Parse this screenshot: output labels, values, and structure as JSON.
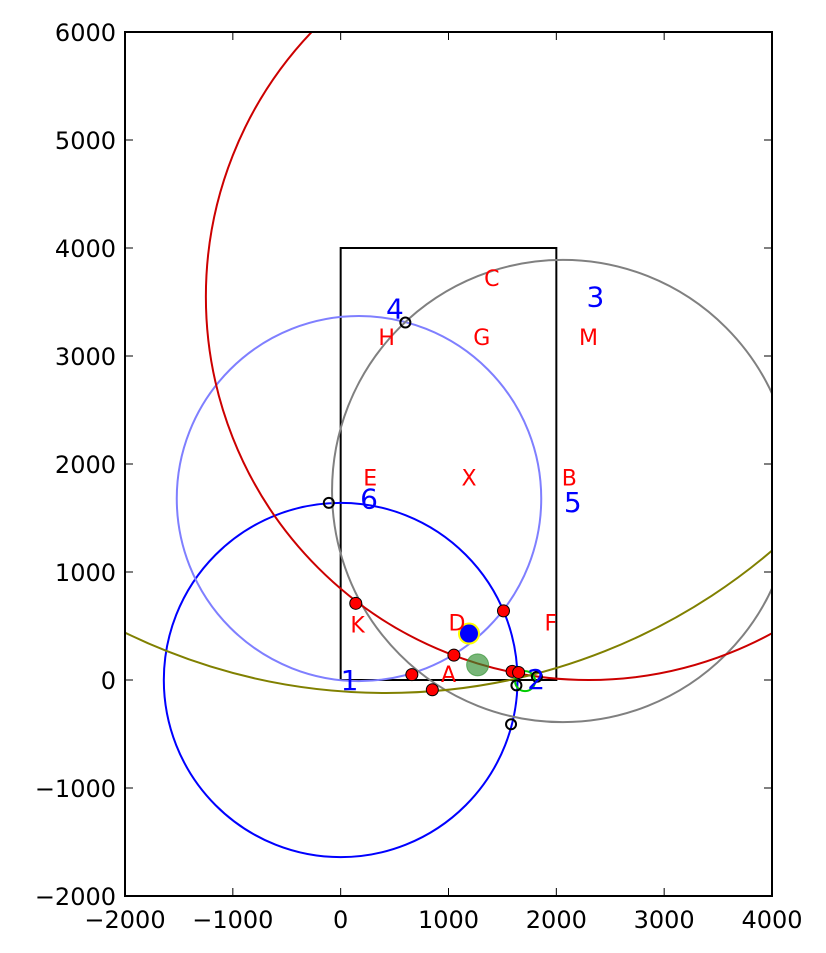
{
  "chart_data": {
    "type": "scatter",
    "title": "",
    "xlabel": "",
    "ylabel": "",
    "xlim": [
      -2000,
      4000
    ],
    "ylim": [
      -2000,
      6000
    ],
    "xticks": [
      -2000,
      -1000,
      0,
      1000,
      2000,
      3000,
      4000
    ],
    "yticks": [
      -2000,
      -1000,
      0,
      1000,
      2000,
      3000,
      4000,
      5000,
      6000
    ],
    "tick_labels_x": [
      "−2000",
      "−1000",
      "0",
      "1000",
      "2000",
      "3000",
      "4000"
    ],
    "tick_labels_y": [
      "−2000",
      "−1000",
      "0",
      "1000",
      "2000",
      "3000",
      "4000",
      "5000",
      "6000"
    ],
    "rectangle": {
      "x0": 0,
      "y0": 0,
      "x1": 2000,
      "y1": 4000,
      "color": "#000000"
    },
    "circles": [
      {
        "cx": 0,
        "cy": 0,
        "r": 1640,
        "color": "#0000ff"
      },
      {
        "cx": 170,
        "cy": 1680,
        "r": 1690,
        "color": "#7f7fff"
      },
      {
        "cx": 2060,
        "cy": 1750,
        "r": 2140,
        "color": "#808080"
      },
      {
        "cx": 2300,
        "cy": 3550,
        "r": 3550,
        "color": "#cc0000"
      },
      {
        "cx": 420,
        "cy": 5400,
        "r": 5520,
        "color": "#808000"
      }
    ],
    "numbers": [
      {
        "label": "1",
        "x": 0,
        "y": 0
      },
      {
        "label": "2",
        "x": 1730,
        "y": 10
      },
      {
        "label": "3",
        "x": 2280,
        "y": 3550
      },
      {
        "label": "4",
        "x": 420,
        "y": 3440
      },
      {
        "label": "5",
        "x": 2070,
        "y": 1650
      },
      {
        "label": "6",
        "x": 180,
        "y": 1680
      }
    ],
    "letters": [
      {
        "label": "A",
        "x": 930,
        "y": -20
      },
      {
        "label": "B",
        "x": 2050,
        "y": 1800
      },
      {
        "label": "C",
        "x": 1330,
        "y": 3650
      },
      {
        "label": "D",
        "x": 1000,
        "y": 460
      },
      {
        "label": "E",
        "x": 210,
        "y": 1800
      },
      {
        "label": "F",
        "x": 1890,
        "y": 460
      },
      {
        "label": "G",
        "x": 1230,
        "y": 3100
      },
      {
        "label": "H",
        "x": 350,
        "y": 3100
      },
      {
        "label": "K",
        "x": 90,
        "y": 440
      },
      {
        "label": "M",
        "x": 2210,
        "y": 3100
      },
      {
        "label": "X",
        "x": 1120,
        "y": 1800
      }
    ],
    "red_points": [
      {
        "x": 140,
        "y": 710
      },
      {
        "x": 660,
        "y": 50
      },
      {
        "x": 850,
        "y": -90
      },
      {
        "x": 1050,
        "y": 230
      },
      {
        "x": 1510,
        "y": 640
      },
      {
        "x": 1590,
        "y": 80
      },
      {
        "x": 1650,
        "y": 70
      }
    ],
    "open_points": [
      {
        "x": 600,
        "y": 3310
      },
      {
        "x": -110,
        "y": 1640
      },
      {
        "x": 1580,
        "y": -410
      },
      {
        "x": 1630,
        "y": -50
      },
      {
        "x": 1820,
        "y": 30
      }
    ],
    "blue_point": {
      "x": 1190,
      "y": 430,
      "edge": "#ffff00"
    },
    "green_point": {
      "x": 1270,
      "y": 140,
      "color": "#2f8f2f"
    },
    "green_ring": {
      "x": 1710,
      "y": -10,
      "color": "#00cc00"
    },
    "grid": false,
    "legend": "none"
  }
}
